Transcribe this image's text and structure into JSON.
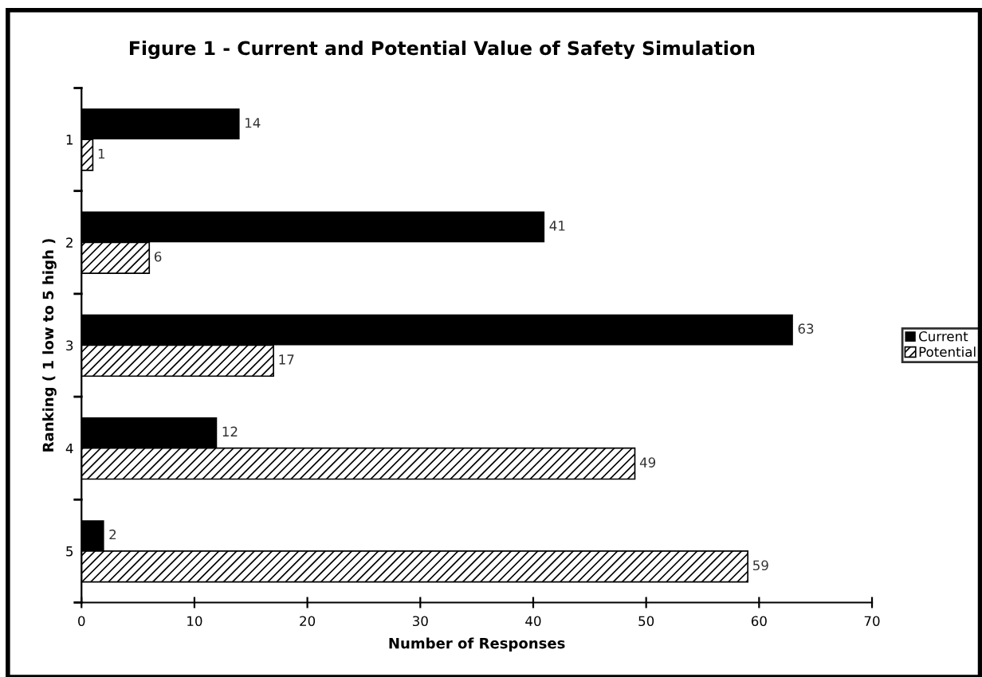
{
  "chart_data": {
    "type": "bar",
    "orientation": "horizontal",
    "title": "Figure 1 - Current and Potential Value of Safety Simulation",
    "xlabel": "Number of Responses",
    "ylabel": "Ranking ( 1 low to 5 high )",
    "categories": [
      "1",
      "2",
      "3",
      "4",
      "5"
    ],
    "series": [
      {
        "name": "Current",
        "color": "#000000",
        "values": [
          14,
          41,
          63,
          12,
          2
        ]
      },
      {
        "name": "Potential",
        "color": "#000000",
        "values": [
          1,
          6,
          17,
          49,
          59
        ]
      }
    ],
    "xlim": [
      0,
      70
    ],
    "xticks": [
      0,
      10,
      20,
      30,
      40,
      50,
      60,
      70
    ],
    "grid": false,
    "legend": "right",
    "data_labels": true
  }
}
